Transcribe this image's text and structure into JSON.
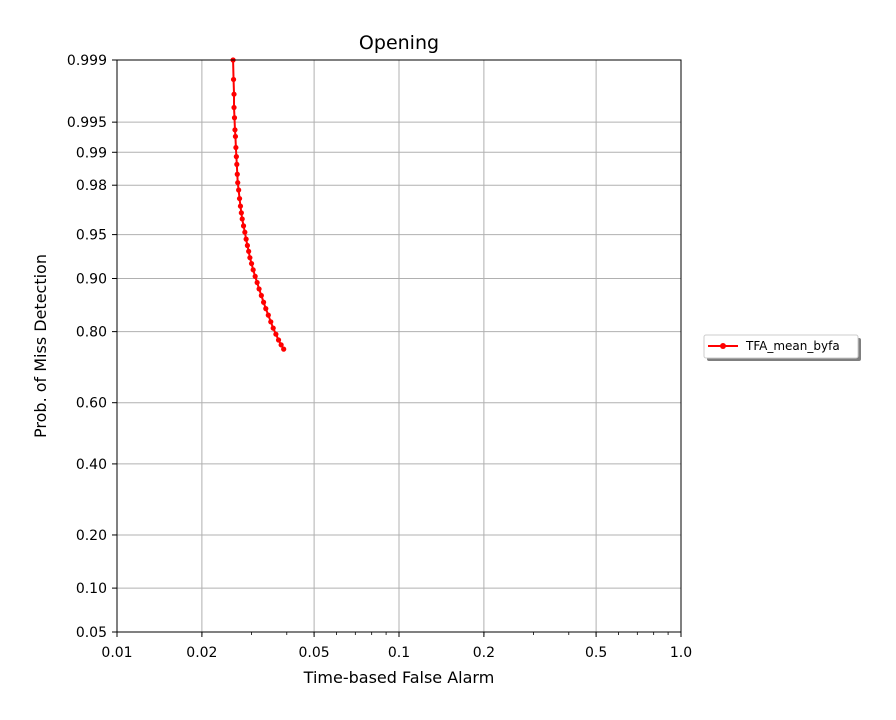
{
  "chart_data": {
    "type": "line",
    "title": "Opening",
    "xlabel": "Time-based False Alarm",
    "ylabel": "Prob. of Miss Detection",
    "x_scale": "log",
    "y_scale": "probit",
    "xlim": [
      0.01,
      1.0
    ],
    "ylim": [
      0.05,
      0.999
    ],
    "x_ticks": [
      0.01,
      0.02,
      0.05,
      0.1,
      0.2,
      0.5,
      1.0
    ],
    "x_tick_labels": [
      "0.01",
      "0.02",
      "0.05",
      "0.1",
      "0.2",
      "0.5",
      "1.0"
    ],
    "y_ticks": [
      0.05,
      0.1,
      0.2,
      0.4,
      0.6,
      0.8,
      0.9,
      0.95,
      0.98,
      0.99,
      0.995,
      0.999
    ],
    "y_tick_labels": [
      "0.05",
      "0.10",
      "0.20",
      "0.40",
      "0.60",
      "0.80",
      "0.90",
      "0.95",
      "0.98",
      "0.99",
      "0.995",
      "0.999"
    ],
    "grid": true,
    "legend_position": "outside-right",
    "series": [
      {
        "name": "TFA_mean_byfa",
        "color": "#ff0000",
        "marker": "circle",
        "x": [
          0.0258,
          0.0259,
          0.026,
          0.026,
          0.0261,
          0.0262,
          0.0263,
          0.0264,
          0.0265,
          0.0266,
          0.0267,
          0.0268,
          0.027,
          0.0272,
          0.0274,
          0.0276,
          0.0278,
          0.0281,
          0.0284,
          0.0287,
          0.029,
          0.0293,
          0.0296,
          0.03,
          0.0304,
          0.0309,
          0.0314,
          0.0319,
          0.0325,
          0.0331,
          0.0337,
          0.0344,
          0.0351,
          0.0358,
          0.0366,
          0.0374,
          0.0382,
          0.039
        ],
        "y": [
          0.999,
          0.9983,
          0.9975,
          0.9965,
          0.9955,
          0.994,
          0.993,
          0.991,
          0.989,
          0.987,
          0.984,
          0.981,
          0.978,
          0.974,
          0.97,
          0.966,
          0.962,
          0.957,
          0.952,
          0.946,
          0.94,
          0.934,
          0.927,
          0.92,
          0.912,
          0.903,
          0.894,
          0.884,
          0.873,
          0.861,
          0.849,
          0.836,
          0.822,
          0.808,
          0.794,
          0.78,
          0.768,
          0.757
        ]
      }
    ]
  }
}
